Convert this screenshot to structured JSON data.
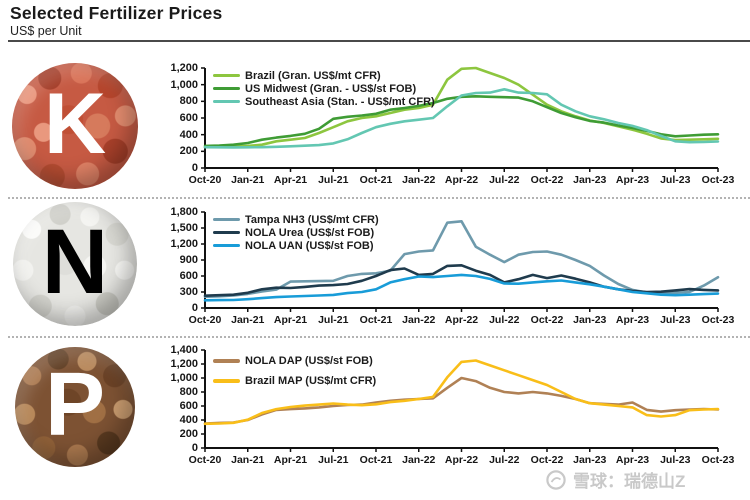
{
  "header": {
    "title": "Selected Fertilizer Prices",
    "subtitle": "US$ per Unit"
  },
  "panels": [
    {
      "letter": "K"
    },
    {
      "letter": "N"
    },
    {
      "letter": "P"
    }
  ],
  "watermark": {
    "icon": "xueqiu-snowball-logo",
    "text": "雪球：瑞德山Z"
  },
  "chart_data": [
    {
      "type": "line",
      "nutrient": "K",
      "categories": [
        "Oct-20",
        "Nov-20",
        "Dec-20",
        "Jan-21",
        "Feb-21",
        "Mar-21",
        "Apr-21",
        "May-21",
        "Jun-21",
        "Jul-21",
        "Aug-21",
        "Sep-21",
        "Oct-21",
        "Nov-21",
        "Dec-21",
        "Jan-22",
        "Feb-22",
        "Mar-22",
        "Apr-22",
        "May-22",
        "Jun-22",
        "Jul-22",
        "Aug-22",
        "Sep-22",
        "Oct-22",
        "Nov-22",
        "Dec-22",
        "Jan-23",
        "Feb-23",
        "Mar-23",
        "Apr-23",
        "May-23",
        "Jun-23",
        "Jul-23",
        "Aug-23",
        "Sep-23",
        "Oct-23"
      ],
      "xtick_labels": [
        "Oct-20",
        "Jan-21",
        "Apr-21",
        "Jul-21",
        "Oct-21",
        "Jan-22",
        "Apr-22",
        "Jul-22",
        "Oct-22",
        "Jan-23",
        "Apr-23",
        "Jul-23",
        "Oct-23"
      ],
      "ylim": [
        0,
        1200
      ],
      "yticks": [
        0,
        200,
        400,
        600,
        800,
        1000,
        1200
      ],
      "grid": false,
      "legend_position": "top-left",
      "series": [
        {
          "name": "Brazil (Gran. US$/mt CFR)",
          "color": "#8DC63F",
          "values": [
            250,
            255,
            260,
            265,
            280,
            320,
            340,
            360,
            420,
            490,
            560,
            600,
            620,
            660,
            700,
            720,
            760,
            1060,
            1190,
            1200,
            1140,
            1080,
            1000,
            880,
            760,
            680,
            620,
            570,
            540,
            500,
            460,
            410,
            355,
            335,
            340,
            345,
            350
          ]
        },
        {
          "name": "US Midwest (Gran. - US$/st FOB)",
          "color": "#3F9C35",
          "values": [
            265,
            270,
            280,
            300,
            340,
            365,
            385,
            410,
            470,
            590,
            615,
            630,
            650,
            700,
            720,
            745,
            780,
            830,
            855,
            860,
            855,
            850,
            845,
            800,
            730,
            660,
            610,
            565,
            545,
            510,
            480,
            445,
            405,
            380,
            390,
            400,
            405
          ]
        },
        {
          "name": "Southeast Asia (Stan. - US$/mt CFR)",
          "color": "#63C7B2",
          "values": [
            250,
            248,
            247,
            248,
            250,
            255,
            260,
            268,
            275,
            295,
            345,
            420,
            490,
            530,
            560,
            580,
            600,
            740,
            870,
            900,
            905,
            945,
            905,
            900,
            885,
            760,
            680,
            620,
            585,
            540,
            505,
            455,
            385,
            320,
            310,
            312,
            318
          ]
        }
      ]
    },
    {
      "type": "line",
      "nutrient": "N",
      "categories": [
        "Oct-20",
        "Nov-20",
        "Dec-20",
        "Jan-21",
        "Feb-21",
        "Mar-21",
        "Apr-21",
        "May-21",
        "Jun-21",
        "Jul-21",
        "Aug-21",
        "Sep-21",
        "Oct-21",
        "Nov-21",
        "Dec-21",
        "Jan-22",
        "Feb-22",
        "Mar-22",
        "Apr-22",
        "May-22",
        "Jun-22",
        "Jul-22",
        "Aug-22",
        "Sep-22",
        "Oct-22",
        "Nov-22",
        "Dec-22",
        "Jan-23",
        "Feb-23",
        "Mar-23",
        "Apr-23",
        "May-23",
        "Jun-23",
        "Jul-23",
        "Aug-23",
        "Sep-23",
        "Oct-23"
      ],
      "xtick_labels": [
        "Oct-20",
        "Jan-21",
        "Apr-21",
        "Jul-21",
        "Oct-21",
        "Jan-22",
        "Apr-22",
        "Jul-22",
        "Oct-22",
        "Jan-23",
        "Apr-23",
        "Jul-23",
        "Oct-23"
      ],
      "ylim": [
        0,
        1800
      ],
      "yticks": [
        0,
        300,
        600,
        900,
        1200,
        1500,
        1800
      ],
      "grid": false,
      "legend_position": "top-left",
      "series": [
        {
          "name": "Tampa NH3 (US$/mt CFR)",
          "color": "#6E9AAC",
          "values": [
            210,
            220,
            235,
            265,
            310,
            345,
            495,
            500,
            505,
            510,
            600,
            640,
            650,
            700,
            1010,
            1060,
            1080,
            1600,
            1625,
            1150,
            1000,
            860,
            1000,
            1050,
            1060,
            1000,
            900,
            790,
            610,
            450,
            340,
            290,
            280,
            285,
            300,
            420,
            575
          ]
        },
        {
          "name": "NOLA Urea (US$/st FOB)",
          "color": "#1F3B4D",
          "values": [
            230,
            240,
            250,
            285,
            350,
            380,
            375,
            395,
            420,
            430,
            450,
            510,
            600,
            710,
            740,
            620,
            640,
            790,
            800,
            700,
            620,
            480,
            540,
            620,
            560,
            610,
            550,
            480,
            400,
            350,
            320,
            300,
            305,
            330,
            355,
            340,
            330
          ]
        },
        {
          "name": "NOLA UAN (US$/st FOB)",
          "color": "#189CD8",
          "values": [
            145,
            148,
            150,
            165,
            185,
            205,
            215,
            225,
            235,
            245,
            280,
            300,
            350,
            480,
            540,
            590,
            580,
            600,
            620,
            600,
            545,
            460,
            455,
            480,
            500,
            515,
            480,
            445,
            400,
            350,
            300,
            275,
            250,
            240,
            250,
            260,
            270
          ]
        }
      ]
    },
    {
      "type": "line",
      "nutrient": "P",
      "categories": [
        "Oct-20",
        "Nov-20",
        "Dec-20",
        "Jan-21",
        "Feb-21",
        "Mar-21",
        "Apr-21",
        "May-21",
        "Jun-21",
        "Jul-21",
        "Aug-21",
        "Sep-21",
        "Oct-21",
        "Nov-21",
        "Dec-21",
        "Jan-22",
        "Feb-22",
        "Mar-22",
        "Apr-22",
        "May-22",
        "Jun-22",
        "Jul-22",
        "Aug-22",
        "Sep-22",
        "Oct-22",
        "Nov-22",
        "Dec-22",
        "Jan-23",
        "Feb-23",
        "Mar-23",
        "Apr-23",
        "May-23",
        "Jun-23",
        "Jul-23",
        "Aug-23",
        "Sep-23",
        "Oct-23"
      ],
      "xtick_labels": [
        "Oct-20",
        "Jan-21",
        "Apr-21",
        "Jul-21",
        "Oct-21",
        "Jan-22",
        "Apr-22",
        "Jul-22",
        "Oct-22",
        "Jan-23",
        "Apr-23",
        "Jul-23",
        "Oct-23"
      ],
      "ylim": [
        0,
        1400
      ],
      "yticks": [
        0,
        200,
        400,
        600,
        800,
        1000,
        1200,
        1400
      ],
      "grid": false,
      "legend_position": "top-left",
      "series": [
        {
          "name": "NOLA DAP (US$/st FOB)",
          "color": "#B08155",
          "values": [
            350,
            358,
            365,
            400,
            480,
            545,
            555,
            565,
            580,
            600,
            615,
            620,
            650,
            675,
            690,
            700,
            710,
            860,
            1000,
            955,
            860,
            800,
            780,
            800,
            780,
            745,
            700,
            640,
            630,
            620,
            650,
            545,
            520,
            540,
            550,
            555,
            550
          ]
        },
        {
          "name": "Brazil MAP (US$/mt CFR)",
          "color": "#F9BE19",
          "values": [
            345,
            350,
            360,
            405,
            500,
            555,
            585,
            605,
            620,
            635,
            620,
            612,
            625,
            655,
            675,
            700,
            730,
            1010,
            1230,
            1250,
            1180,
            1110,
            1040,
            970,
            900,
            800,
            700,
            640,
            620,
            600,
            580,
            470,
            450,
            470,
            540,
            550,
            555
          ]
        }
      ]
    }
  ]
}
